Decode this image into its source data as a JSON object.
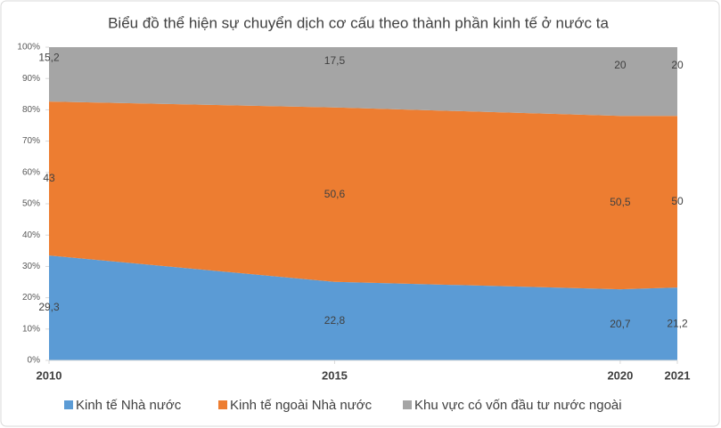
{
  "chart_data": {
    "type": "area",
    "stacking": "percent",
    "title": "Biểu đồ thể hiện sự chuyển dịch cơ cấu theo thành phần kinh tế ở nước ta",
    "x": [
      2010,
      2015,
      2020,
      2021
    ],
    "xlim": [
      2010,
      2021
    ],
    "xticks": [
      2010,
      2015,
      2020,
      2021
    ],
    "ylim": [
      0,
      100
    ],
    "yticks": [
      {
        "value": 0,
        "label": "0%"
      },
      {
        "value": 10,
        "label": "10%"
      },
      {
        "value": 20,
        "label": "20%"
      },
      {
        "value": 30,
        "label": "30%"
      },
      {
        "value": 40,
        "label": "40%"
      },
      {
        "value": 50,
        "label": "50%"
      },
      {
        "value": 60,
        "label": "60%"
      },
      {
        "value": 70,
        "label": "70%"
      },
      {
        "value": 80,
        "label": "80%"
      },
      {
        "value": 90,
        "label": "90%"
      },
      {
        "value": 100,
        "label": "100%"
      }
    ],
    "legend": "bottom",
    "series": [
      {
        "name": "Kinh tế Nhà nước",
        "color": "#5b9bd5",
        "values": [
          29.3,
          22.8,
          20.7,
          21.2
        ],
        "value_labels": [
          "29,3",
          "22,8",
          "20,7",
          "21,2"
        ]
      },
      {
        "name": "Kinh tế ngoài Nhà nước",
        "color": "#ed7d31",
        "values": [
          43,
          50.6,
          50.5,
          50
        ],
        "value_labels": [
          "43",
          "50,6",
          "50,5",
          "50"
        ]
      },
      {
        "name": "Khu vực có vốn đầu tư nước ngoài",
        "color": "#a5a5a5",
        "values": [
          15.2,
          17.5,
          20,
          20
        ],
        "value_labels": [
          "15,2",
          "17,5",
          "20",
          "20"
        ]
      }
    ]
  }
}
